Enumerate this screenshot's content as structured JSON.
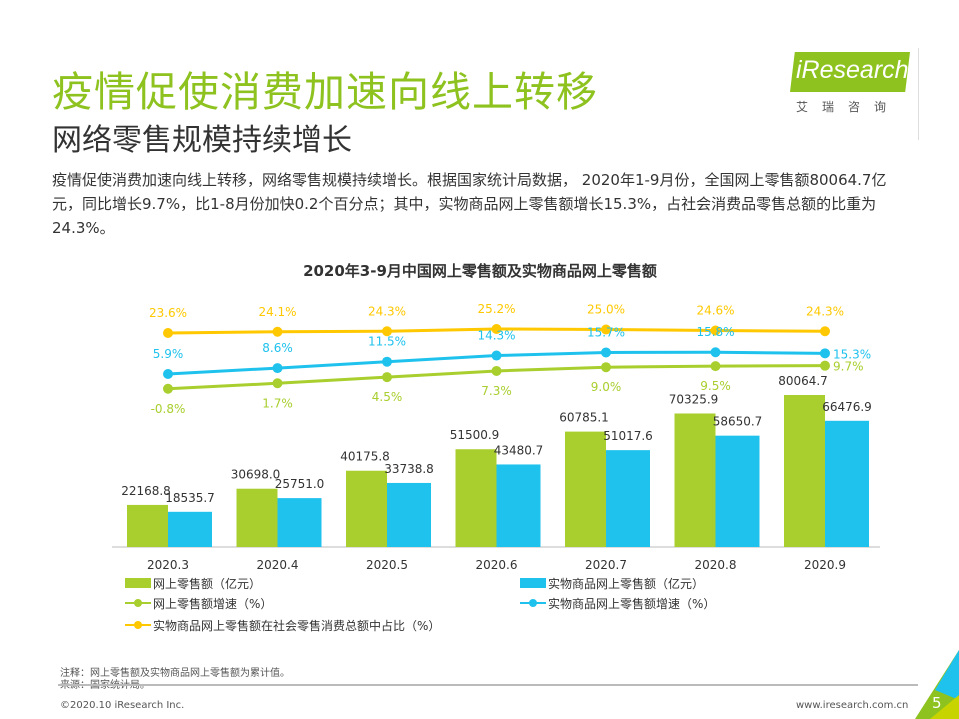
{
  "header": {
    "title": "疫情促使消费加速向线上转移",
    "subtitle": "网络零售规模持续增长",
    "logo": "iResearch",
    "logo_cn": "艾瑞咨询"
  },
  "body_text": "疫情促使消费加速向线上转移，网络零售规模持续增长。根据国家统计局数据， 2020年1-9月份，全国网上零售额80064.7亿元，同比增长9.7%，比1-8月份加快0.2个百分点；其中，实物商品网上零售额增长15.3%，占社会消费品零售总额的比重为24.3%。",
  "chart_data": {
    "type": "bar+line",
    "title": "2020年3-9月中国网上零售额及实物商品网上零售额",
    "categories": [
      "2020.3",
      "2020.4",
      "2020.5",
      "2020.6",
      "2020.7",
      "2020.8",
      "2020.9"
    ],
    "series": [
      {
        "name": "网上零售额（亿元）",
        "kind": "bar",
        "color": "#a8cf2e",
        "values": [
          22168.8,
          30698.0,
          40175.8,
          51500.9,
          60785.1,
          70325.9,
          80064.7
        ]
      },
      {
        "name": "实物商品网上零售额（亿元）",
        "kind": "bar",
        "color": "#1fc2ed",
        "values": [
          18535.7,
          25751.0,
          33738.8,
          43480.7,
          51017.6,
          58650.7,
          66476.9
        ]
      },
      {
        "name": "网上零售额增速（%）",
        "kind": "line",
        "color": "#a8cf2e",
        "values": [
          -0.8,
          1.7,
          4.5,
          7.3,
          9.0,
          9.5,
          9.7
        ]
      },
      {
        "name": "实物商品网上零售额增速（%）",
        "kind": "line",
        "color": "#1fc2ed",
        "values": [
          5.9,
          8.6,
          11.5,
          14.3,
          15.7,
          15.8,
          15.3
        ]
      },
      {
        "name": "实物商品网上零售额在社会零售消费总额中占比（%）",
        "kind": "line",
        "color": "#ffc800",
        "values": [
          23.6,
          24.1,
          24.3,
          25.2,
          25.0,
          24.6,
          24.3
        ]
      }
    ],
    "legend": "bottom"
  },
  "footer": {
    "note": "注释：网上零售额及实物商品网上零售额为累计值。",
    "source": "来源：国家统计局。",
    "copyright": "©2020.10 iResearch Inc.",
    "url": "www.iresearch.com.cn",
    "page": "5"
  }
}
